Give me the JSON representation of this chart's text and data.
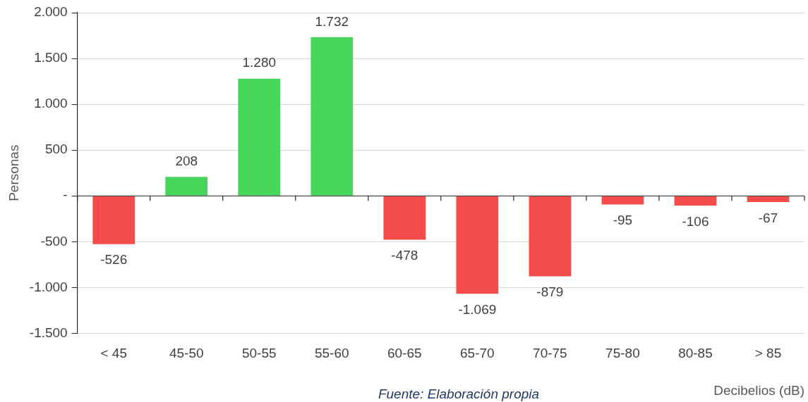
{
  "chart_data": {
    "type": "bar",
    "ylabel": "Personas",
    "xlabel": "Decibelios (dB)",
    "categories": [
      "< 45",
      "45-50",
      "50-55",
      "55-60",
      "60-65",
      "65-70",
      "70-75",
      "75-80",
      "80-85",
      "> 85"
    ],
    "values": [
      -526,
      208,
      1280,
      1732,
      -478,
      -1069,
      -879,
      -95,
      -106,
      -67
    ],
    "colors": [
      "#f44b4b",
      "#47d65b",
      "#47d65b",
      "#47d65b",
      "#f44b4b",
      "#f44b4b",
      "#f44b4b",
      "#f44b4b",
      "#f44b4b",
      "#f44b4b"
    ],
    "value_labels": [
      "-526",
      "208",
      "1.280",
      "1.732",
      "-478",
      "-1.069",
      "-879",
      "-95",
      "-106",
      "-67"
    ],
    "ylim": [
      -1500,
      2000
    ],
    "yticks": [
      {
        "value": -1500,
        "label": "-1.500"
      },
      {
        "value": -1000,
        "label": "-1.000"
      },
      -500,
      {
        "value": 0,
        "label": "-"
      },
      500,
      {
        "value": 1000,
        "label": "1.000"
      },
      {
        "value": 1500,
        "label": "1.500"
      },
      {
        "value": 2000,
        "label": "2.000"
      }
    ],
    "grid": "y",
    "legend": false,
    "annotations": [
      "Fuente: Elaboración propia"
    ]
  }
}
